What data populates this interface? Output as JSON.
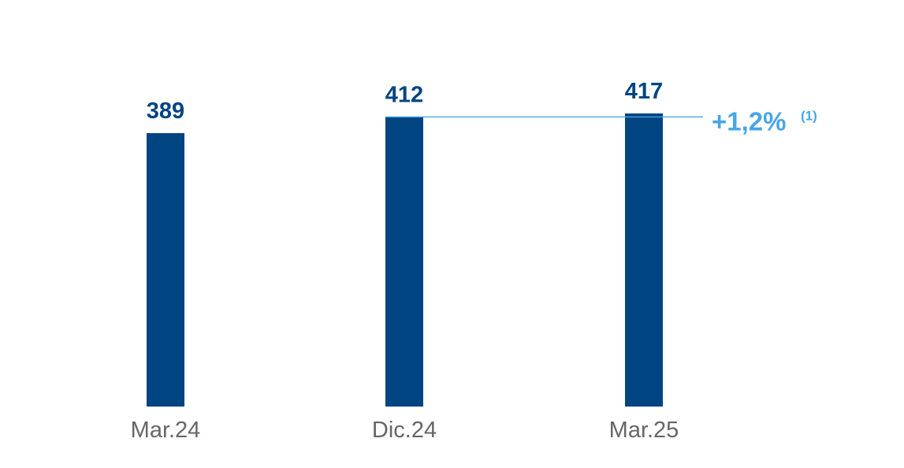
{
  "chart_data": {
    "type": "bar",
    "title": "",
    "xlabel": "",
    "ylabel": "",
    "categories": [
      "Mar.24",
      "Dic.24",
      "Mar.25"
    ],
    "values": [
      389,
      412,
      417
    ],
    "value_labels": [
      "389",
      "412",
      "417"
    ],
    "ylim": [
      0,
      417
    ],
    "grid": false,
    "annotation": {
      "text": "+1,2%",
      "note": "(1)",
      "from_category": "Dic.24",
      "to_category": "Mar.25"
    }
  },
  "colors": {
    "bar": "#004481",
    "value_label": "#004481",
    "category_label": "#666666",
    "annotation": "#49a5e6"
  }
}
